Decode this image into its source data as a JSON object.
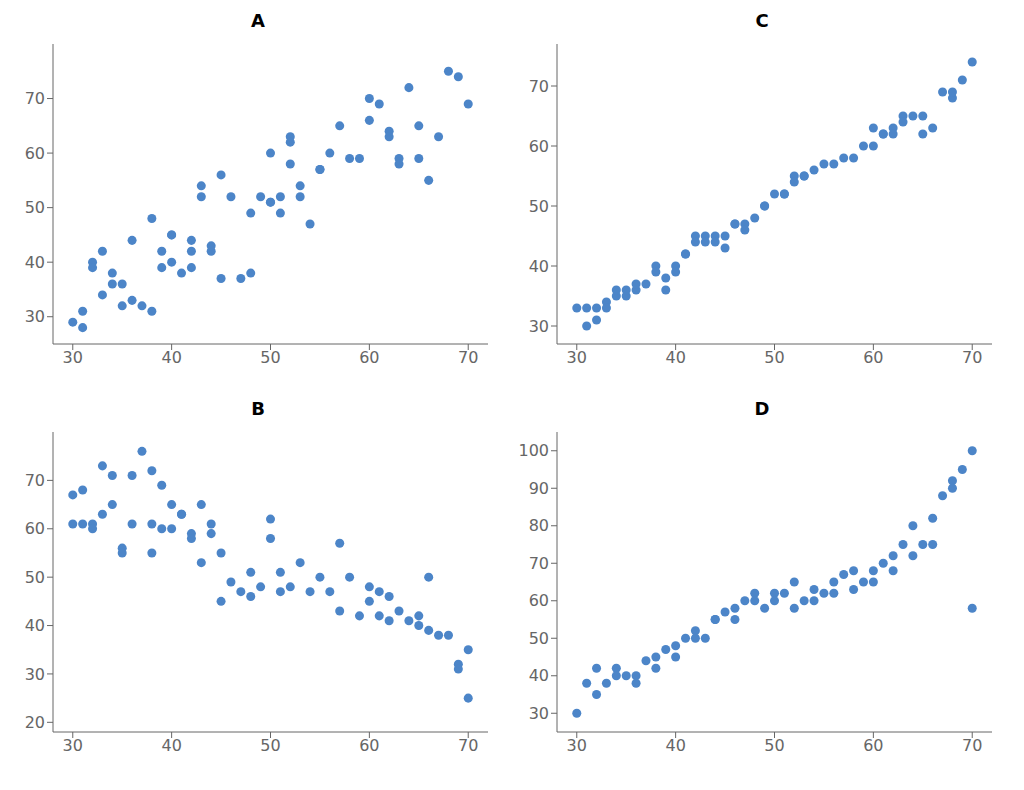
{
  "chart_data": [
    {
      "type": "scatter",
      "title": "A",
      "color": "#4C85C8",
      "grid": false,
      "x": [
        30,
        31,
        31,
        32,
        32,
        33,
        33,
        34,
        34,
        35,
        35,
        36,
        36,
        37,
        38,
        38,
        39,
        39,
        40,
        40,
        40,
        41,
        42,
        42,
        42,
        43,
        43,
        44,
        44,
        45,
        45,
        46,
        47,
        48,
        48,
        49,
        50,
        50,
        50,
        51,
        51,
        52,
        52,
        52,
        53,
        53,
        54,
        55,
        55,
        56,
        57,
        58,
        59,
        60,
        60,
        61,
        62,
        62,
        63,
        63,
        64,
        65,
        65,
        66,
        67,
        68,
        69,
        70
      ],
      "values": [
        29,
        31,
        28,
        40,
        39,
        34,
        42,
        38,
        36,
        32,
        36,
        33,
        44,
        32,
        48,
        31,
        42,
        39,
        45,
        45,
        40,
        38,
        44,
        42,
        39,
        52,
        54,
        42,
        43,
        56,
        37,
        52,
        37,
        49,
        38,
        52,
        51,
        51,
        60,
        52,
        49,
        63,
        62,
        58,
        52,
        54,
        47,
        57,
        57,
        60,
        65,
        59,
        59,
        70,
        66,
        69,
        64,
        63,
        59,
        58,
        72,
        65,
        59,
        55,
        63,
        75,
        74,
        69
      ],
      "xlim": [
        28,
        72
      ],
      "ylim": [
        25,
        80
      ],
      "xticks": [
        30,
        40,
        50,
        60,
        70
      ],
      "yticks": [
        30,
        40,
        50,
        60,
        70
      ]
    },
    {
      "type": "scatter",
      "title": "C",
      "color": "#4C85C8",
      "grid": false,
      "x": [
        30,
        31,
        31,
        32,
        32,
        33,
        33,
        34,
        34,
        35,
        35,
        36,
        36,
        37,
        38,
        38,
        39,
        39,
        40,
        40,
        41,
        41,
        42,
        42,
        43,
        43,
        44,
        44,
        45,
        45,
        46,
        46,
        47,
        47,
        48,
        49,
        49,
        50,
        51,
        51,
        52,
        52,
        53,
        53,
        54,
        55,
        56,
        57,
        58,
        59,
        60,
        60,
        61,
        61,
        62,
        62,
        63,
        63,
        64,
        65,
        65,
        66,
        67,
        68,
        68,
        69,
        70
      ],
      "values": [
        33,
        33,
        30,
        33,
        31,
        34,
        33,
        35,
        36,
        35,
        36,
        36,
        37,
        37,
        40,
        39,
        38,
        36,
        40,
        39,
        42,
        42,
        45,
        44,
        45,
        44,
        45,
        44,
        45,
        43,
        47,
        47,
        47,
        46,
        48,
        50,
        50,
        52,
        52,
        52,
        55,
        54,
        55,
        55,
        56,
        57,
        57,
        58,
        58,
        60,
        60,
        63,
        62,
        62,
        63,
        62,
        65,
        64,
        65,
        65,
        62,
        63,
        69,
        68,
        69,
        71,
        74
      ],
      "xlim": [
        28,
        72
      ],
      "ylim": [
        27,
        77
      ],
      "xticks": [
        30,
        40,
        50,
        60,
        70
      ],
      "yticks": [
        30,
        40,
        50,
        60,
        70
      ]
    },
    {
      "type": "scatter",
      "title": "B",
      "color": "#4C85C8",
      "grid": false,
      "x": [
        30,
        30,
        31,
        31,
        32,
        32,
        33,
        33,
        34,
        34,
        35,
        35,
        36,
        36,
        37,
        38,
        38,
        38,
        39,
        39,
        40,
        40,
        41,
        41,
        42,
        42,
        43,
        43,
        44,
        44,
        45,
        45,
        46,
        47,
        48,
        48,
        49,
        50,
        50,
        51,
        51,
        52,
        53,
        54,
        55,
        56,
        57,
        57,
        58,
        59,
        60,
        60,
        61,
        61,
        62,
        62,
        63,
        64,
        65,
        65,
        66,
        66,
        67,
        68,
        69,
        69,
        70,
        70
      ],
      "values": [
        67,
        61,
        68,
        61,
        61,
        60,
        73,
        63,
        71,
        65,
        56,
        55,
        71,
        61,
        76,
        72,
        61,
        55,
        69,
        60,
        65,
        60,
        63,
        63,
        59,
        58,
        65,
        53,
        61,
        59,
        55,
        45,
        49,
        47,
        51,
        46,
        48,
        62,
        58,
        51,
        47,
        48,
        53,
        47,
        50,
        47,
        57,
        43,
        50,
        42,
        48,
        45,
        47,
        42,
        46,
        41,
        43,
        41,
        40,
        42,
        39,
        50,
        38,
        38,
        32,
        31,
        35,
        25
      ],
      "xlim": [
        28,
        72
      ],
      "ylim": [
        18,
        80
      ],
      "xticks": [
        30,
        40,
        50,
        60,
        70
      ],
      "yticks": [
        20,
        30,
        40,
        50,
        60,
        70
      ]
    },
    {
      "type": "scatter",
      "title": "D",
      "color": "#4C85C8",
      "grid": false,
      "x": [
        30,
        31,
        32,
        33,
        34,
        35,
        36,
        37,
        38,
        39,
        40,
        41,
        42,
        43,
        44,
        45,
        46,
        47,
        48,
        49,
        50,
        51,
        52,
        53,
        54,
        55,
        56,
        57,
        58,
        59,
        60,
        61,
        62,
        63,
        64,
        65,
        66,
        67,
        68,
        69,
        70,
        32,
        34,
        36,
        38,
        40,
        42,
        44,
        46,
        48,
        50,
        52,
        54,
        56,
        58,
        60,
        62,
        64,
        66,
        68,
        70
      ],
      "values": [
        30,
        38,
        42,
        38,
        42,
        40,
        40,
        44,
        42,
        47,
        48,
        50,
        52,
        50,
        55,
        57,
        58,
        60,
        62,
        58,
        62,
        62,
        65,
        60,
        63,
        62,
        65,
        67,
        63,
        65,
        68,
        70,
        72,
        75,
        80,
        75,
        82,
        88,
        92,
        95,
        100,
        35,
        40,
        38,
        45,
        45,
        50,
        55,
        55,
        60,
        60,
        58,
        60,
        62,
        68,
        65,
        68,
        72,
        75,
        90,
        58
      ],
      "xlim": [
        28,
        72
      ],
      "ylim": [
        25,
        105
      ],
      "xticks": [
        30,
        40,
        50,
        60,
        70
      ],
      "yticks": [
        30,
        40,
        50,
        60,
        70,
        80,
        90,
        100
      ]
    }
  ]
}
